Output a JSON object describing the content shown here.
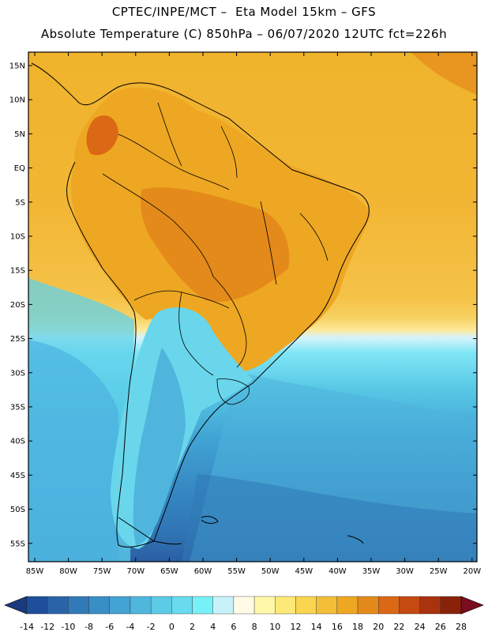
{
  "header": {
    "line1": "CPTEC/INPE/MCT –  Eta Model 15km – GFS",
    "line2": "Absolute Temperature (C) 850hPa – 06/07/2020 12UTC fct=226h"
  },
  "map": {
    "lat_labels": [
      "15N",
      "10N",
      "5N",
      "EQ",
      "5S",
      "10S",
      "15S",
      "20S",
      "25S",
      "30S",
      "35S",
      "40S",
      "45S",
      "50S",
      "55S"
    ],
    "lon_labels": [
      "85W",
      "80W",
      "75W",
      "70W",
      "65W",
      "60W",
      "55W",
      "50W",
      "45W",
      "40W",
      "35W",
      "30W",
      "25W",
      "20W"
    ]
  },
  "colorbar": {
    "labels": [
      "-14",
      "-12",
      "-10",
      "-8",
      "-6",
      "-4",
      "-2",
      "0",
      "2",
      "4",
      "6",
      "8",
      "10",
      "12",
      "14",
      "16",
      "18",
      "20",
      "22",
      "24",
      "26",
      "28"
    ],
    "colors": [
      "#1f4f9a",
      "#2a64a8",
      "#3279b7",
      "#3a8ec6",
      "#43a3d2",
      "#4fb7dd",
      "#5ccbe6",
      "#68dcee",
      "#78f0f8",
      "#c8f2fa",
      "#fffbe6",
      "#fff8a8",
      "#fde978",
      "#f9d550",
      "#f3be38",
      "#eea722",
      "#e48a1a",
      "#db6814",
      "#c44a12",
      "#a8330e",
      "#8a220a"
    ],
    "left_arrow_color": "#1a3a80",
    "right_arrow_color": "#7a0d1e"
  }
}
